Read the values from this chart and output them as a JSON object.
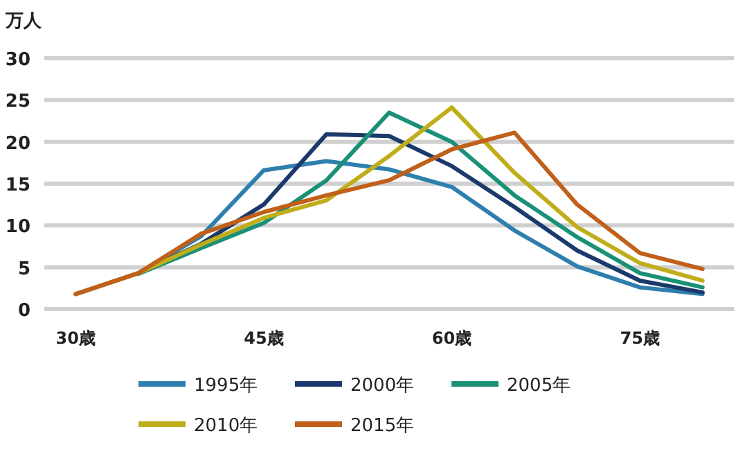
{
  "chart_data": {
    "type": "line",
    "ylabel": "万人",
    "x": [
      30,
      35,
      40,
      45,
      50,
      55,
      60,
      65,
      70,
      75,
      80
    ],
    "xlim": [
      27.5,
      82.5
    ],
    "ylim": [
      0,
      30
    ],
    "xticks": [
      {
        "value": 30,
        "label": "30歳"
      },
      {
        "value": 45,
        "label": "45歳"
      },
      {
        "value": 60,
        "label": "60歳"
      },
      {
        "value": 75,
        "label": "75歳"
      }
    ],
    "yticks": [
      0,
      5,
      10,
      15,
      20,
      25,
      30
    ],
    "grid": "y",
    "legend": "bottom",
    "marker": "none",
    "line_style": "solid",
    "series": [
      {
        "name": "1995年",
        "color": "#2e7fae",
        "values": [
          1.8,
          4.3,
          8.7,
          16.6,
          17.7,
          16.7,
          14.6,
          9.4,
          5.1,
          2.6,
          1.8
        ]
      },
      {
        "name": "2000年",
        "color": "#1b3a6b",
        "values": [
          null,
          4.3,
          7.8,
          12.5,
          20.9,
          20.7,
          17.1,
          12.2,
          7.0,
          3.4,
          2.0
        ]
      },
      {
        "name": "2005年",
        "color": "#1a9077",
        "values": [
          null,
          4.2,
          7.3,
          10.3,
          15.4,
          23.5,
          20.0,
          13.6,
          8.6,
          4.3,
          2.6
        ]
      },
      {
        "name": "2010年",
        "color": "#c1ad1a",
        "values": [
          1.8,
          4.3,
          7.7,
          10.9,
          13.0,
          18.3,
          24.1,
          16.3,
          9.8,
          5.5,
          3.4
        ]
      },
      {
        "name": "2015年",
        "color": "#c0601a",
        "values": [
          1.8,
          4.3,
          9.0,
          11.6,
          13.6,
          15.4,
          19.1,
          21.1,
          12.5,
          6.7,
          4.8
        ]
      }
    ]
  }
}
